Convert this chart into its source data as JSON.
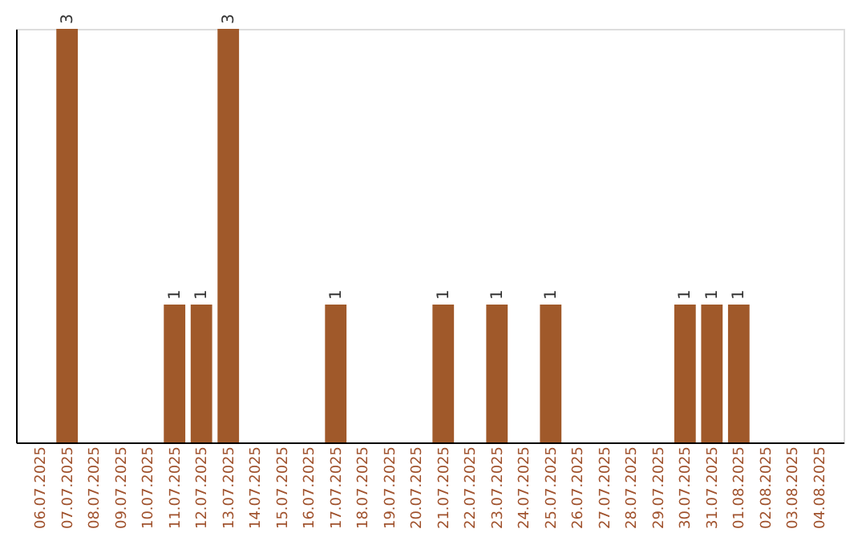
{
  "chart_data": {
    "type": "bar",
    "categories": [
      "06.07.2025",
      "07.07.2025",
      "08.07.2025",
      "09.07.2025",
      "10.07.2025",
      "11.07.2025",
      "12.07.2025",
      "13.07.2025",
      "14.07.2025",
      "15.07.2025",
      "16.07.2025",
      "17.07.2025",
      "18.07.2025",
      "19.07.2025",
      "20.07.2025",
      "21.07.2025",
      "22.07.2025",
      "23.07.2025",
      "24.07.2025",
      "25.07.2025",
      "26.07.2025",
      "27.07.2025",
      "28.07.2025",
      "29.07.2025",
      "30.07.2025",
      "31.07.2025",
      "01.08.2025",
      "02.08.2025",
      "03.08.2025",
      "04.08.2025"
    ],
    "values": [
      0,
      3,
      0,
      0,
      0,
      1,
      1,
      3,
      0,
      0,
      0,
      1,
      0,
      0,
      0,
      1,
      0,
      1,
      0,
      1,
      0,
      0,
      0,
      0,
      1,
      1,
      1,
      0,
      0,
      0
    ],
    "value_labels": [
      null,
      "3",
      null,
      null,
      null,
      "1",
      "1",
      "3",
      null,
      null,
      null,
      "1",
      null,
      null,
      null,
      "1",
      null,
      "1",
      null,
      "1",
      null,
      null,
      null,
      null,
      "1",
      "1",
      "1",
      null,
      null,
      null
    ],
    "color": "#a0592a",
    "grid": false,
    "tick_labels": "x"
  }
}
